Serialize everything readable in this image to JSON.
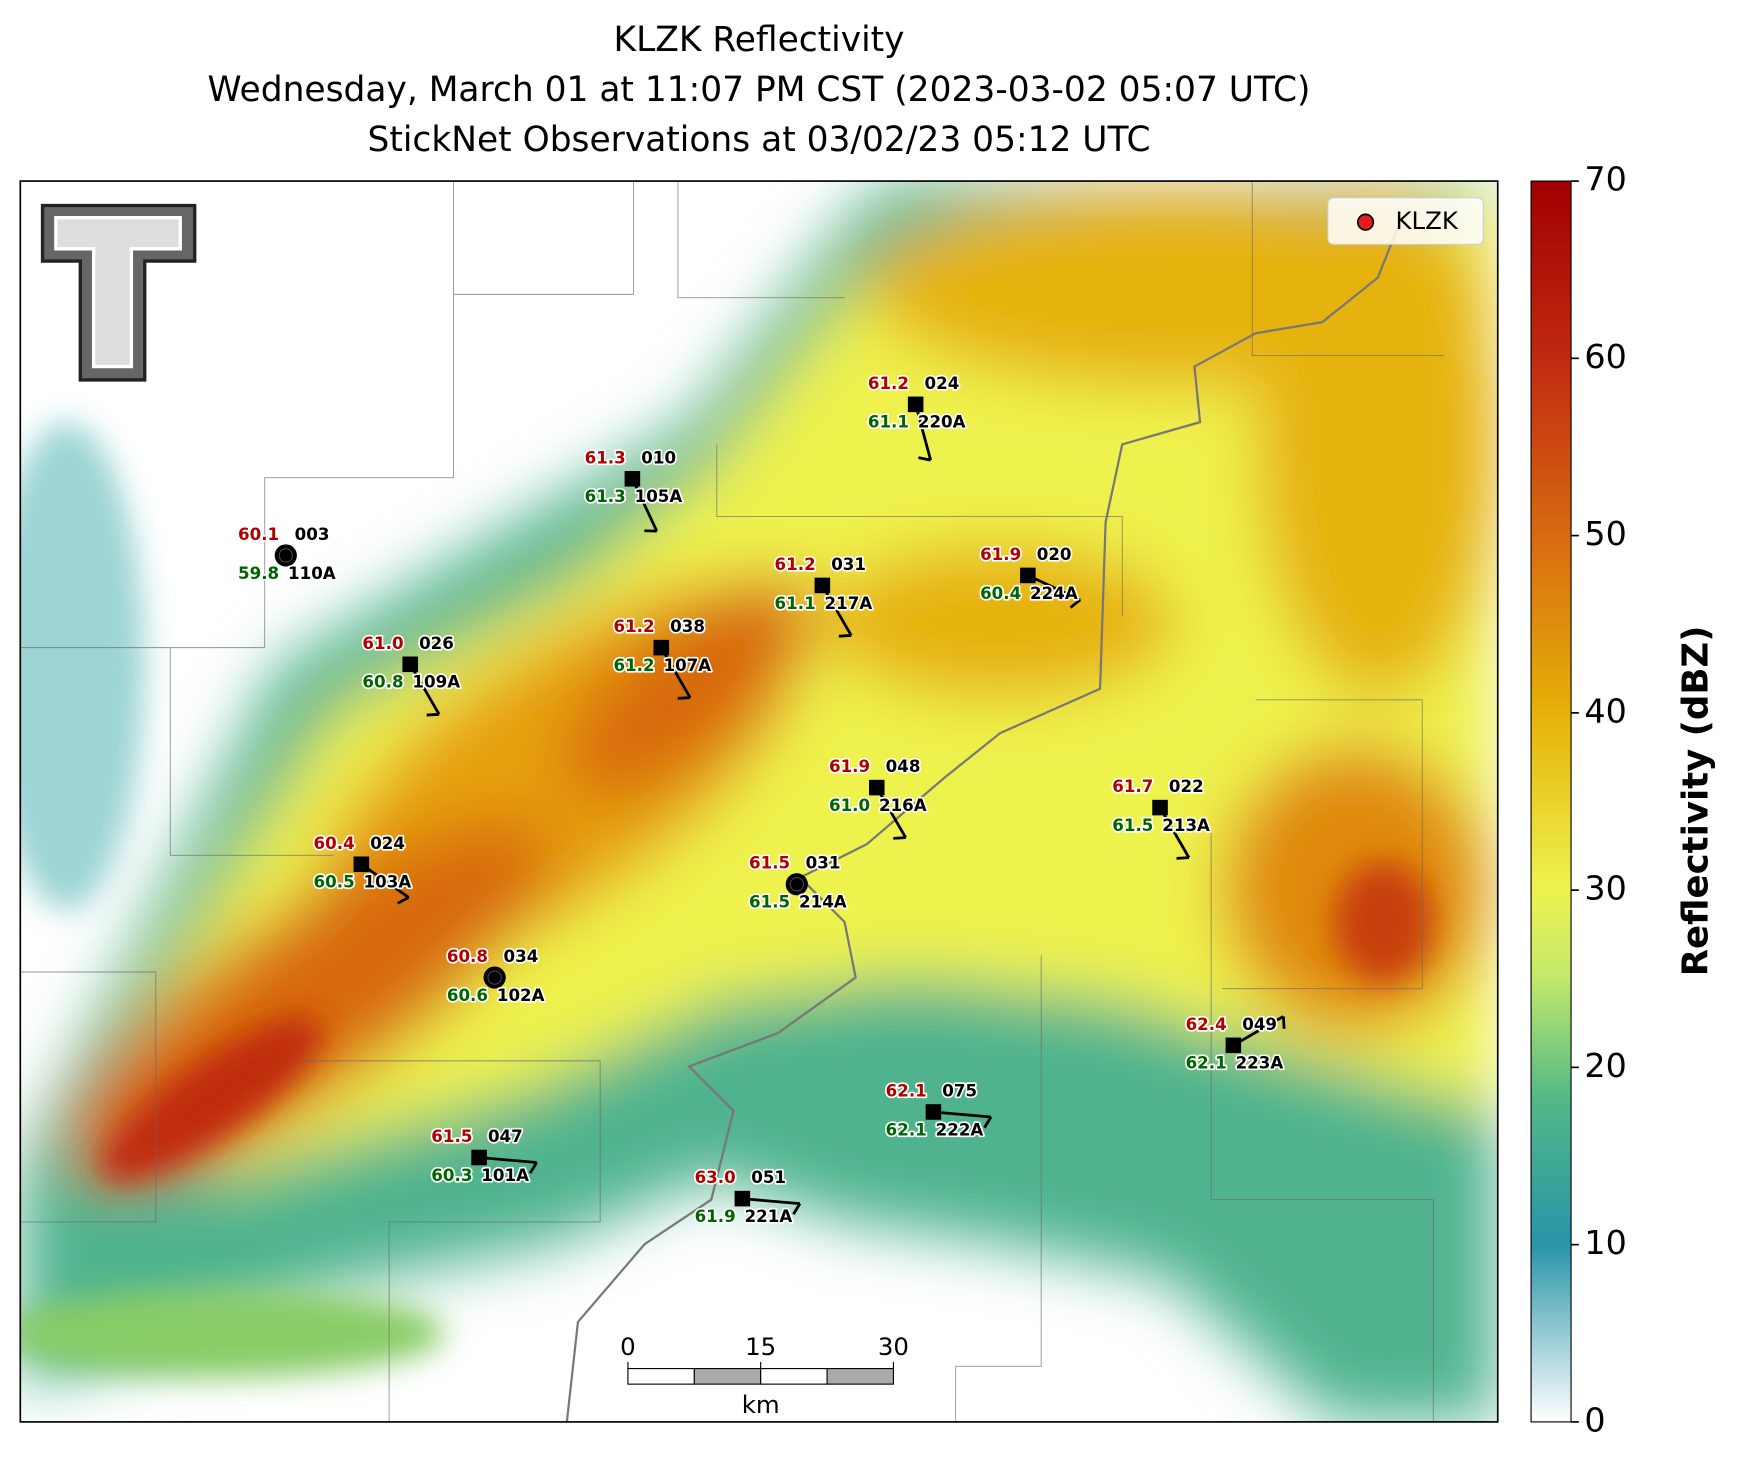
{
  "title_lines": [
    "KLZK Reflectivity",
    "Wednesday, March 01 at 11:07 PM CST (2023-03-02 05:07 UTC)",
    "StickNet Observations at 03/02/23 05:12 UTC"
  ],
  "map": {
    "legend": {
      "label": "KLZK",
      "color": "#e41a1c"
    },
    "scale_bar": {
      "ticks": [
        0,
        15,
        30
      ],
      "unit": "km"
    },
    "stations": [
      {
        "id": "110A",
        "pressure": "003",
        "temperature": 60.1,
        "dewpoint": 59.8,
        "marker": "circle",
        "wind_from": null
      },
      {
        "id": "105A",
        "pressure": "010",
        "temperature": 61.3,
        "dewpoint": 61.3,
        "marker": "square",
        "wind_from": 155
      },
      {
        "id": "220A",
        "pressure": "024",
        "temperature": 61.2,
        "dewpoint": 61.1,
        "marker": "square",
        "wind_from": 165
      },
      {
        "id": "217A",
        "pressure": "031",
        "temperature": 61.2,
        "dewpoint": 61.1,
        "marker": "square",
        "wind_from": 150
      },
      {
        "id": "224A",
        "pressure": "020",
        "temperature": 61.9,
        "dewpoint": 60.4,
        "marker": "square",
        "wind_from": 115
      },
      {
        "id": "107A",
        "pressure": "038",
        "temperature": 61.2,
        "dewpoint": 61.2,
        "marker": "square",
        "wind_from": 150
      },
      {
        "id": "109A",
        "pressure": "026",
        "temperature": 61.0,
        "dewpoint": 60.8,
        "marker": "square",
        "wind_from": 150
      },
      {
        "id": "216A",
        "pressure": "048",
        "temperature": 61.9,
        "dewpoint": 61.0,
        "marker": "square",
        "wind_from": 150
      },
      {
        "id": "213A",
        "pressure": "022",
        "temperature": 61.7,
        "dewpoint": 61.5,
        "marker": "square",
        "wind_from": 150
      },
      {
        "id": "103A",
        "pressure": "024",
        "temperature": 60.4,
        "dewpoint": 60.5,
        "marker": "square",
        "wind_from": 125
      },
      {
        "id": "214A",
        "pressure": "031",
        "temperature": 61.5,
        "dewpoint": 61.5,
        "marker": "circle",
        "wind_from": null
      },
      {
        "id": "102A",
        "pressure": "034",
        "temperature": 60.8,
        "dewpoint": 60.6,
        "marker": "circle",
        "wind_from": null
      },
      {
        "id": "223A",
        "pressure": "049",
        "temperature": 62.4,
        "dewpoint": 62.1,
        "marker": "square",
        "wind_from": 60
      },
      {
        "id": "222A",
        "pressure": "075",
        "temperature": 62.1,
        "dewpoint": 62.1,
        "marker": "square",
        "wind_from": 95
      },
      {
        "id": "101A",
        "pressure": "047",
        "temperature": 61.5,
        "dewpoint": 60.3,
        "marker": "square",
        "wind_from": 95
      },
      {
        "id": "221A",
        "pressure": "051",
        "temperature": 63.0,
        "dewpoint": 61.9,
        "marker": "square",
        "wind_from": 95
      }
    ]
  },
  "colorbar": {
    "label": "Reflectivity (dBZ)",
    "lim": [
      0,
      70
    ],
    "ticks": [
      0,
      10,
      20,
      30,
      40,
      50,
      60,
      70
    ]
  }
}
